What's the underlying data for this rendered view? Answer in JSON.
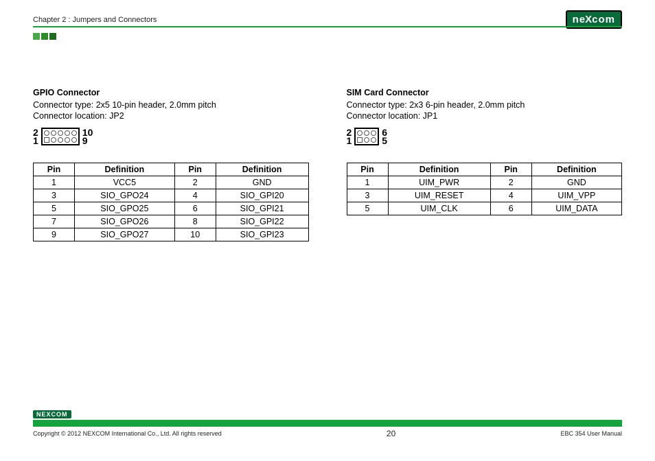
{
  "header": {
    "chapter": "Chapter 2 : Jumpers and Connectors",
    "logo_text_1": "ne",
    "logo_text_x": "X",
    "logo_text_2": "com"
  },
  "squares": [
    "#4aa84a",
    "#2c8b2c",
    "#1f6e1f"
  ],
  "left": {
    "title": "GPIO Connector",
    "type": "Connector type: 2x5 10-pin header, 2.0mm pitch",
    "loc": "Connector location: JP2",
    "diagram": {
      "rows": 2,
      "cols": 5,
      "top_left": "2",
      "bottom_left": "1",
      "top_right": "10",
      "bottom_right": "9",
      "square_pin_index": 5
    },
    "headers": [
      "Pin",
      "Definition",
      "Pin",
      "Definition"
    ],
    "rows": [
      [
        "1",
        "VCC5",
        "2",
        "GND"
      ],
      [
        "3",
        "SIO_GPO24",
        "4",
        "SIO_GPI20"
      ],
      [
        "5",
        "SIO_GPO25",
        "6",
        "SIO_GPI21"
      ],
      [
        "7",
        "SIO_GPO26",
        "8",
        "SIO_GPI22"
      ],
      [
        "9",
        "SIO_GPO27",
        "10",
        "SIO_GPI23"
      ]
    ]
  },
  "right": {
    "title": "SIM Card Connector",
    "type": "Connector type: 2x3 6-pin header, 2.0mm pitch",
    "loc": "Connector location: JP1",
    "diagram": {
      "rows": 2,
      "cols": 3,
      "top_left": "2",
      "bottom_left": "1",
      "top_right": "6",
      "bottom_right": "5",
      "square_pin_index": 3
    },
    "headers": [
      "Pin",
      "Definition",
      "Pin",
      "Definition"
    ],
    "rows": [
      [
        "1",
        "UIM_PWR",
        "2",
        "GND"
      ],
      [
        "3",
        "UIM_RESET",
        "4",
        "UIM_VPP"
      ],
      [
        "5",
        "UIM_CLK",
        "6",
        "UIM_DATA"
      ]
    ]
  },
  "footer": {
    "copyright": "Copyright © 2012 NEXCOM International Co., Ltd. All rights reserved",
    "page": "20",
    "manual": "EBC 354 User Manual",
    "logo": "NEXCOM"
  },
  "colors": {
    "rule": "#15a33d",
    "logo_bg": "#0a6b3a"
  }
}
